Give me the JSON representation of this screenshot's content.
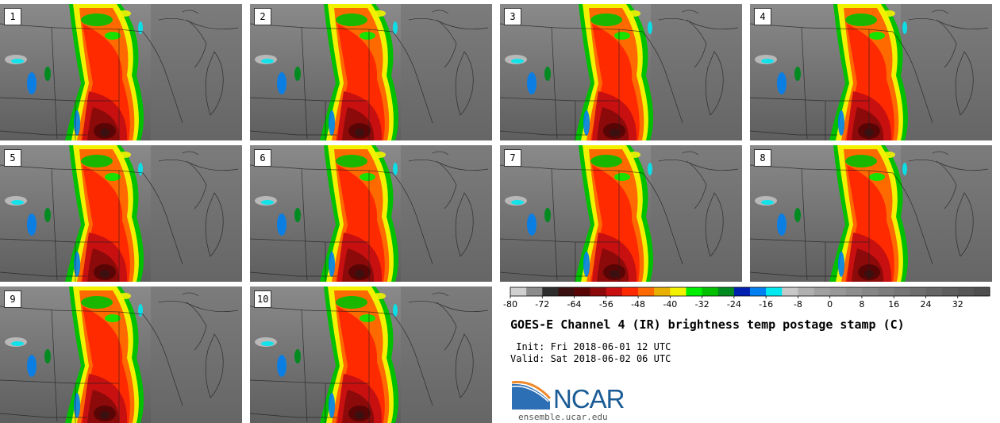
{
  "panels": [
    {
      "label": "1"
    },
    {
      "label": "2"
    },
    {
      "label": "3"
    },
    {
      "label": "4"
    },
    {
      "label": "5"
    },
    {
      "label": "6"
    },
    {
      "label": "7"
    },
    {
      "label": "8"
    },
    {
      "label": "9"
    },
    {
      "label": "10"
    }
  ],
  "colorbar": {
    "min": -80,
    "max": 40,
    "step": 4,
    "tick_labels": [
      "-80",
      "-72",
      "-64",
      "-56",
      "-48",
      "-40",
      "-32",
      "-24",
      "-16",
      "-8",
      "0",
      "8",
      "16",
      "24",
      "32"
    ],
    "tick_values": [
      -80,
      -72,
      -64,
      -56,
      -48,
      -40,
      -32,
      -24,
      -16,
      -8,
      0,
      8,
      16,
      24,
      32
    ],
    "colors": [
      "#d0d0d0",
      "#8c8c8c",
      "#2e2e2e",
      "#3a1010",
      "#5a0505",
      "#8c0a0a",
      "#c81010",
      "#ff2a00",
      "#ff6a00",
      "#e8b000",
      "#f2f200",
      "#00ee00",
      "#00c000",
      "#008a20",
      "#0020b0",
      "#0080f0",
      "#00e8f0",
      "#c8c8c8",
      "#b0b0b0",
      "#a0a0a0",
      "#989898",
      "#8e8e8e",
      "#868686",
      "#7e7e7e",
      "#767676",
      "#6e6e6e",
      "#666666",
      "#5e5e5e",
      "#565656",
      "#4e4e4e"
    ]
  },
  "title": "GOES-E Channel 4 (IR) brightness temp postage stamp (C)",
  "init_text": " Init: Fri 2018-06-01 12 UTC",
  "valid_text": "Valid: Sat 2018-06-02 06 UTC",
  "logo": {
    "name": "NCAR",
    "colors": {
      "sky": "#2d6fb5",
      "arc": "#f08a2a",
      "text": "#1c5c95"
    }
  },
  "site": "ensemble.ucar.edu"
}
